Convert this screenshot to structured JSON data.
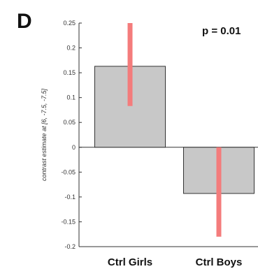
{
  "panel_letter": "D",
  "annotation": "p = 0.01",
  "chart_data": {
    "type": "bar",
    "categories": [
      "Ctrl Girls",
      "Ctrl Boys"
    ],
    "values": [
      0.163,
      -0.093
    ],
    "error_bars": [
      {
        "low": 0.083,
        "high": 0.25
      },
      {
        "low": -0.18,
        "high": 0.0
      }
    ],
    "title": "",
    "xlabel": "",
    "ylabel": "contrast estimate at [6, -7.5, -7.5]",
    "ylim": [
      -0.2,
      0.25
    ],
    "yticks": [
      -0.2,
      -0.15,
      -0.1,
      -0.05,
      0,
      0.05,
      0.1,
      0.15,
      0.2,
      0.25
    ],
    "ytick_labels": [
      "-0.2",
      "-0.15",
      "-0.1",
      "-0.05",
      "0",
      "0.05",
      "0.1",
      "0.15",
      "0.2",
      "0.25"
    ],
    "bar_color": "#c8c8c8",
    "bar_edge_color": "#333333",
    "error_bar_color": "#f47c7c",
    "grid": false
  }
}
